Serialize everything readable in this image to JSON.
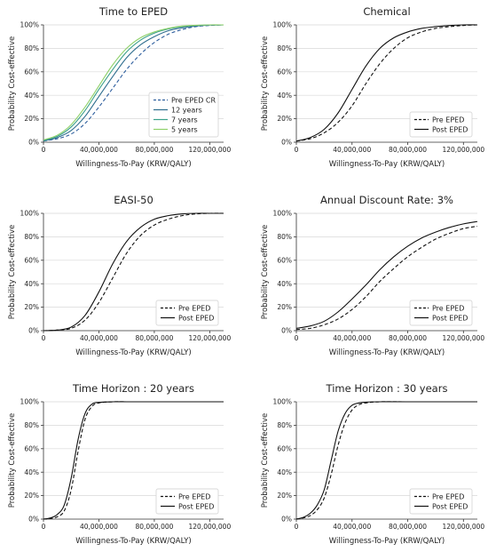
{
  "chart_data": [
    {
      "type": "line",
      "title": "Time to EPED",
      "xlabel": "Willingness-To-Pay (KRW/QALY)",
      "ylabel": "Probability Cost-effective",
      "xlim": [
        0,
        130000000
      ],
      "ylim": [
        0,
        100
      ],
      "xticks": [
        0,
        40000000,
        80000000,
        120000000
      ],
      "xtick_labels": [
        "0",
        "40,000,000",
        "80,000,000",
        "120,000,000"
      ],
      "yticks": [
        0,
        20,
        40,
        60,
        80,
        100
      ],
      "ytick_labels": [
        "0%",
        "20%",
        "40%",
        "60%",
        "80%",
        "100%"
      ],
      "grid": "horizontal",
      "legend_position": "bottom-right",
      "series": [
        {
          "name": "Pre EPED CR",
          "color": "#2f5f9e",
          "dash": "dashed",
          "x": [
            0,
            10000000,
            20000000,
            30000000,
            40000000,
            50000000,
            60000000,
            70000000,
            80000000,
            90000000,
            100000000,
            110000000,
            120000000,
            130000000
          ],
          "y": [
            1,
            3,
            7,
            16,
            30,
            46,
            62,
            75,
            85,
            92,
            96,
            98.5,
            99.5,
            100
          ]
        },
        {
          "name": "12 years",
          "color": "#2e6d8e",
          "dash": "solid",
          "x": [
            0,
            10000000,
            20000000,
            30000000,
            40000000,
            50000000,
            60000000,
            70000000,
            80000000,
            90000000,
            100000000,
            110000000,
            120000000,
            130000000
          ],
          "y": [
            1,
            4,
            10,
            22,
            39,
            56,
            72,
            83,
            90,
            95,
            97.5,
            99,
            99.8,
            100
          ]
        },
        {
          "name": "7 years",
          "color": "#3aa08a",
          "dash": "solid",
          "x": [
            0,
            10000000,
            20000000,
            30000000,
            40000000,
            50000000,
            60000000,
            70000000,
            80000000,
            90000000,
            100000000,
            110000000,
            120000000,
            130000000
          ],
          "y": [
            1.5,
            5,
            13,
            27,
            45,
            62,
            77,
            87,
            93,
            96.5,
            98.5,
            99.5,
            99.9,
            100
          ]
        },
        {
          "name": "5 years",
          "color": "#8fd16a",
          "dash": "solid",
          "x": [
            0,
            10000000,
            20000000,
            30000000,
            40000000,
            50000000,
            60000000,
            70000000,
            80000000,
            90000000,
            100000000,
            110000000,
            120000000,
            130000000
          ],
          "y": [
            2,
            6,
            15,
            30,
            48,
            66,
            80,
            89,
            94,
            97,
            99,
            99.7,
            100,
            100
          ]
        }
      ]
    },
    {
      "type": "line",
      "title": "Chemical",
      "xlabel": "Willingness-To-Pay (KRW/QALY)",
      "ylabel": "Probability Cost-effective",
      "xlim": [
        0,
        130000000
      ],
      "ylim": [
        0,
        100
      ],
      "xticks": [
        0,
        40000000,
        80000000,
        120000000
      ],
      "xtick_labels": [
        "0",
        "40,000,000",
        "80,000,000",
        "120,000,000"
      ],
      "yticks": [
        0,
        20,
        40,
        60,
        80,
        100
      ],
      "ytick_labels": [
        "0%",
        "20%",
        "40%",
        "60%",
        "80%",
        "100%"
      ],
      "grid": "horizontal",
      "legend_position": "bottom-right",
      "series": [
        {
          "name": "Pre EPED",
          "color": "#111111",
          "dash": "dashed",
          "x": [
            0,
            10000000,
            20000000,
            30000000,
            40000000,
            50000000,
            60000000,
            70000000,
            80000000,
            90000000,
            100000000,
            110000000,
            120000000,
            130000000
          ],
          "y": [
            1,
            3,
            8,
            17,
            31,
            50,
            67,
            80,
            89,
            94,
            97,
            98.5,
            99.5,
            100
          ]
        },
        {
          "name": "Post EPED",
          "color": "#111111",
          "dash": "solid",
          "x": [
            0,
            10000000,
            20000000,
            30000000,
            40000000,
            50000000,
            60000000,
            70000000,
            80000000,
            90000000,
            100000000,
            110000000,
            120000000,
            130000000
          ],
          "y": [
            1,
            4,
            11,
            25,
            45,
            65,
            80,
            89,
            94,
            97,
            98.5,
            99.5,
            100,
            100
          ]
        }
      ]
    },
    {
      "type": "line",
      "title": "EASI-50",
      "xlabel": "Willingness-To-Pay (KRW/QALY)",
      "ylabel": "Probability Cost-effective",
      "xlim": [
        0,
        130000000
      ],
      "ylim": [
        0,
        100
      ],
      "xticks": [
        0,
        40000000,
        80000000,
        120000000
      ],
      "xtick_labels": [
        "0",
        "40,000,000",
        "80,000,000",
        "120,000,000"
      ],
      "yticks": [
        0,
        20,
        40,
        60,
        80,
        100
      ],
      "ytick_labels": [
        "0%",
        "20%",
        "40%",
        "60%",
        "80%",
        "100%"
      ],
      "grid": "horizontal",
      "legend_position": "bottom-right",
      "series": [
        {
          "name": "Pre EPED",
          "color": "#111111",
          "dash": "dashed",
          "x": [
            0,
            10000000,
            20000000,
            30000000,
            40000000,
            50000000,
            60000000,
            70000000,
            80000000,
            90000000,
            100000000,
            110000000,
            120000000,
            130000000
          ],
          "y": [
            0,
            0.5,
            2,
            9,
            24,
            45,
            66,
            81,
            90,
            95,
            98,
            99.5,
            100,
            100
          ]
        },
        {
          "name": "Post EPED",
          "color": "#111111",
          "dash": "solid",
          "x": [
            0,
            10000000,
            20000000,
            30000000,
            40000000,
            50000000,
            60000000,
            70000000,
            80000000,
            90000000,
            100000000,
            110000000,
            120000000,
            130000000
          ],
          "y": [
            0,
            0.5,
            3,
            13,
            33,
            57,
            76,
            88,
            95,
            98,
            99.5,
            100,
            100,
            100
          ]
        }
      ]
    },
    {
      "type": "line",
      "title": "Annual Discount Rate: 3%",
      "xlabel": "Willingness-To-Pay (KRW/QALY)",
      "ylabel": "Probability Cost-effective",
      "xlim": [
        0,
        130000000
      ],
      "ylim": [
        0,
        100
      ],
      "xticks": [
        0,
        40000000,
        80000000,
        120000000
      ],
      "xtick_labels": [
        "0",
        "40,000,000",
        "80,000,000",
        "120,000,000"
      ],
      "yticks": [
        0,
        20,
        40,
        60,
        80,
        100
      ],
      "ytick_labels": [
        "0%",
        "20%",
        "40%",
        "60%",
        "80%",
        "100%"
      ],
      "grid": "horizontal",
      "legend_position": "bottom-right",
      "series": [
        {
          "name": "Pre EPED",
          "color": "#111111",
          "dash": "dashed",
          "x": [
            0,
            10000000,
            20000000,
            30000000,
            40000000,
            50000000,
            60000000,
            70000000,
            80000000,
            90000000,
            100000000,
            110000000,
            120000000,
            130000000
          ],
          "y": [
            1,
            2,
            5,
            10,
            18,
            29,
            42,
            53,
            63,
            71,
            78,
            83,
            87,
            89
          ]
        },
        {
          "name": "Post EPED",
          "color": "#111111",
          "dash": "solid",
          "x": [
            0,
            10000000,
            20000000,
            30000000,
            40000000,
            50000000,
            60000000,
            70000000,
            80000000,
            90000000,
            100000000,
            110000000,
            120000000,
            130000000
          ],
          "y": [
            2,
            4,
            8,
            16,
            27,
            39,
            52,
            63,
            72,
            79,
            84,
            88,
            91,
            93
          ]
        }
      ]
    },
    {
      "type": "line",
      "title": "Time Horizon : 20 years",
      "xlabel": "Willingness-To-Pay (KRW/QALY)",
      "ylabel": "Probability Cost-effective",
      "xlim": [
        0,
        130000000
      ],
      "ylim": [
        0,
        100
      ],
      "xticks": [
        0,
        40000000,
        80000000,
        120000000
      ],
      "xtick_labels": [
        "0",
        "40,000,000",
        "80,000,000",
        "120,000,000"
      ],
      "yticks": [
        0,
        20,
        40,
        60,
        80,
        100
      ],
      "ytick_labels": [
        "0%",
        "20%",
        "40%",
        "60%",
        "80%",
        "100%"
      ],
      "grid": "horizontal",
      "legend_position": "bottom-right",
      "series": [
        {
          "name": "Pre EPED",
          "color": "#111111",
          "dash": "dashed",
          "x": [
            0,
            5000000,
            10000000,
            15000000,
            20000000,
            25000000,
            30000000,
            35000000,
            40000000,
            50000000,
            60000000,
            80000000,
            100000000,
            130000000
          ],
          "y": [
            0,
            0.5,
            2,
            7,
            25,
            58,
            85,
            96,
            99,
            100,
            100,
            100,
            100,
            100
          ]
        },
        {
          "name": "Post EPED",
          "color": "#111111",
          "dash": "solid",
          "x": [
            0,
            5000000,
            10000000,
            15000000,
            20000000,
            25000000,
            30000000,
            35000000,
            40000000,
            50000000,
            60000000,
            80000000,
            100000000,
            130000000
          ],
          "y": [
            0,
            1,
            4,
            12,
            35,
            68,
            90,
            98,
            99.5,
            100,
            100,
            100,
            100,
            100
          ]
        }
      ]
    },
    {
      "type": "line",
      "title": "Time Horizon : 30 years",
      "xlabel": "Willingness-To-Pay (KRW/QALY)",
      "ylabel": "Probability Cost-effective",
      "xlim": [
        0,
        130000000
      ],
      "ylim": [
        0,
        100
      ],
      "xticks": [
        0,
        40000000,
        80000000,
        120000000
      ],
      "xtick_labels": [
        "0",
        "40,000,000",
        "80,000,000",
        "120,000,000"
      ],
      "yticks": [
        0,
        20,
        40,
        60,
        80,
        100
      ],
      "ytick_labels": [
        "0%",
        "20%",
        "40%",
        "60%",
        "80%",
        "100%"
      ],
      "grid": "horizontal",
      "legend_position": "bottom-right",
      "series": [
        {
          "name": "Pre EPED",
          "color": "#111111",
          "dash": "dashed",
          "x": [
            0,
            5000000,
            10000000,
            15000000,
            20000000,
            25000000,
            30000000,
            35000000,
            40000000,
            45000000,
            50000000,
            60000000,
            80000000,
            130000000
          ],
          "y": [
            0,
            1,
            3,
            8,
            18,
            38,
            63,
            82,
            93,
            97.5,
            99,
            100,
            100,
            100
          ]
        },
        {
          "name": "Post EPED",
          "color": "#111111",
          "dash": "solid",
          "x": [
            0,
            5000000,
            10000000,
            15000000,
            20000000,
            25000000,
            30000000,
            35000000,
            40000000,
            45000000,
            50000000,
            60000000,
            80000000,
            130000000
          ],
          "y": [
            0,
            1.5,
            5,
            12,
            25,
            50,
            75,
            90,
            97,
            99,
            99.7,
            100,
            100,
            100
          ]
        }
      ]
    }
  ]
}
